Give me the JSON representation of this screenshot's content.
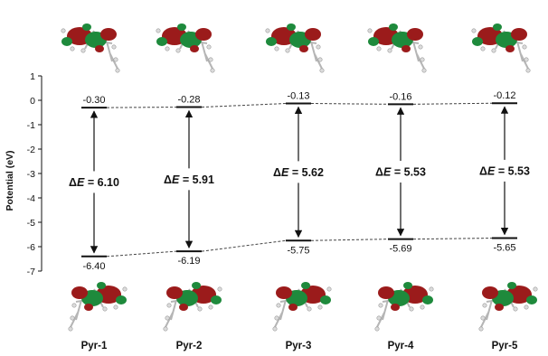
{
  "chart_data": {
    "type": "energy-level diagram",
    "categories": [
      "Pyr-1",
      "Pyr-2",
      "Pyr-3",
      "Pyr-4",
      "Pyr-5"
    ],
    "ylabel": "Potential (eV)",
    "ylim": [
      -7,
      1
    ],
    "yticks": [
      1,
      0,
      -1,
      -2,
      -3,
      -4,
      -5,
      -6,
      -7
    ],
    "series": [
      {
        "values": [
          -0.3,
          -0.28,
          -0.13,
          -0.16,
          -0.12
        ],
        "labels": [
          "-0.30",
          "-0.28",
          "-0.13",
          "-0.16",
          "-0.12"
        ]
      },
      {
        "values": [
          -6.4,
          -6.19,
          -5.75,
          -5.69,
          -5.65
        ],
        "labels": [
          "-6.40",
          "-6.19",
          "-5.75",
          "-5.69",
          "-5.65"
        ]
      }
    ],
    "gaps": {
      "prefix": "Δ",
      "symbol": "E",
      "separator": " = ",
      "values": [
        "6.10",
        "5.91",
        "5.62",
        "5.53",
        "5.53"
      ]
    },
    "orbital_images": "molecular orbital renderings shown above each top level and below each bottom level",
    "colors": {
      "lobe_red": "#9b1b1b",
      "lobe_green": "#1e8a3c",
      "line": "#111111",
      "connector": "#444444"
    }
  }
}
